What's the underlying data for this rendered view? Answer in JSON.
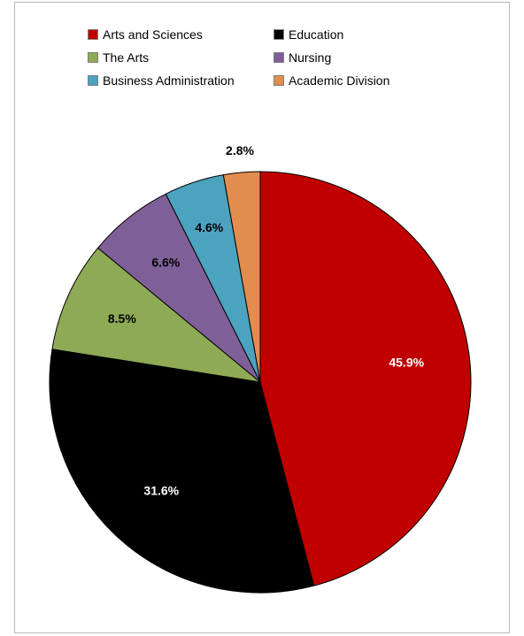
{
  "chart_data": {
    "type": "pie",
    "categories": [
      "Arts and Sciences",
      "Education",
      "The Arts",
      "Nursing",
      "Business Administration",
      "Academic Division"
    ],
    "values": [
      45.9,
      31.6,
      8.5,
      6.6,
      4.6,
      2.8
    ],
    "labels": [
      "45.9%",
      "31.6%",
      "8.5%",
      "6.6%",
      "4.6%",
      "2.8%"
    ],
    "colors": [
      "#c00000",
      "#000000",
      "#8faa55",
      "#7e5f98",
      "#4ba3bf",
      "#e28d4e"
    ],
    "label_colors": [
      "#ffffff",
      "#ffffff",
      "#000000",
      "#000000",
      "#000000",
      "#000000"
    ],
    "legend_position": "top"
  }
}
